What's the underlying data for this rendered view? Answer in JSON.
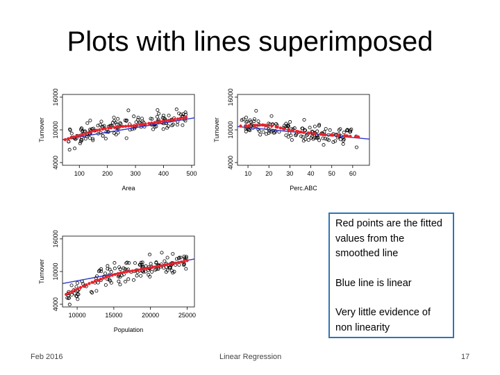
{
  "slide": {
    "title": "Plots with lines superimposed",
    "footer_left": "Feb 2016",
    "footer_center": "Linear Regression",
    "page_number": "17"
  },
  "callout": {
    "line1": "Red points are the fitted values from the smoothed line",
    "line2": "Blue line is linear",
    "line3": "Very little evidence of non linearity"
  },
  "colors": {
    "points": "#000000",
    "fitted": "#e8222a",
    "linear": "#2b35c8",
    "callout_border": "#2e74b5"
  },
  "chart_data": [
    {
      "type": "scatter",
      "xlabel": "Area",
      "ylabel": "Turnover",
      "xlim": [
        40,
        510
      ],
      "ylim": [
        3500,
        16500
      ],
      "xticks": [
        100,
        200,
        300,
        400,
        500
      ],
      "yticks": [
        4000,
        10000,
        16000
      ],
      "linear_fit": {
        "x": [
          40,
          510
        ],
        "y": [
          8200,
          12200
        ]
      },
      "smooth_fitted": {
        "x": [
          50,
          80,
          110,
          150,
          200,
          250,
          300,
          350,
          400,
          440,
          480
        ],
        "y": [
          8200,
          8700,
          9100,
          9800,
          10300,
          10600,
          10800,
          11200,
          11600,
          11900,
          12300
        ]
      },
      "seed": 11,
      "n": 150
    },
    {
      "type": "scatter",
      "xlabel": "Perc.ABC",
      "ylabel": "Turnover",
      "xlim": [
        5,
        68
      ],
      "ylim": [
        3500,
        16500
      ],
      "xticks": [
        10,
        20,
        30,
        40,
        50,
        60
      ],
      "yticks": [
        4000,
        10000,
        16000
      ],
      "linear_fit": {
        "x": [
          5,
          68
        ],
        "y": [
          10600,
          8300
        ]
      },
      "smooth_fitted": {
        "x": [
          7,
          12,
          17,
          22,
          27,
          32,
          37,
          42,
          47,
          52,
          57,
          62
        ],
        "y": [
          10700,
          10800,
          10900,
          10700,
          10200,
          9800,
          9500,
          9300,
          9100,
          9000,
          8900,
          8700
        ]
      },
      "seed": 23,
      "n": 140
    },
    {
      "type": "scatter",
      "xlabel": "Population",
      "ylabel": "Turnover",
      "xlim": [
        8000,
        26000
      ],
      "ylim": [
        3500,
        16500
      ],
      "xticks": [
        10000,
        15000,
        20000,
        25000
      ],
      "yticks": [
        4000,
        10000,
        16000
      ],
      "linear_fit": {
        "x": [
          8000,
          26000
        ],
        "y": [
          7800,
          12300
        ]
      },
      "smooth_fitted": {
        "x": [
          8500,
          10000,
          12000,
          14000,
          16000,
          18000,
          20000,
          22000,
          24000,
          25000
        ],
        "y": [
          5800,
          6800,
          8000,
          9000,
          9800,
          10200,
          10700,
          11200,
          11700,
          12000
        ]
      },
      "seed": 37,
      "n": 150
    }
  ]
}
